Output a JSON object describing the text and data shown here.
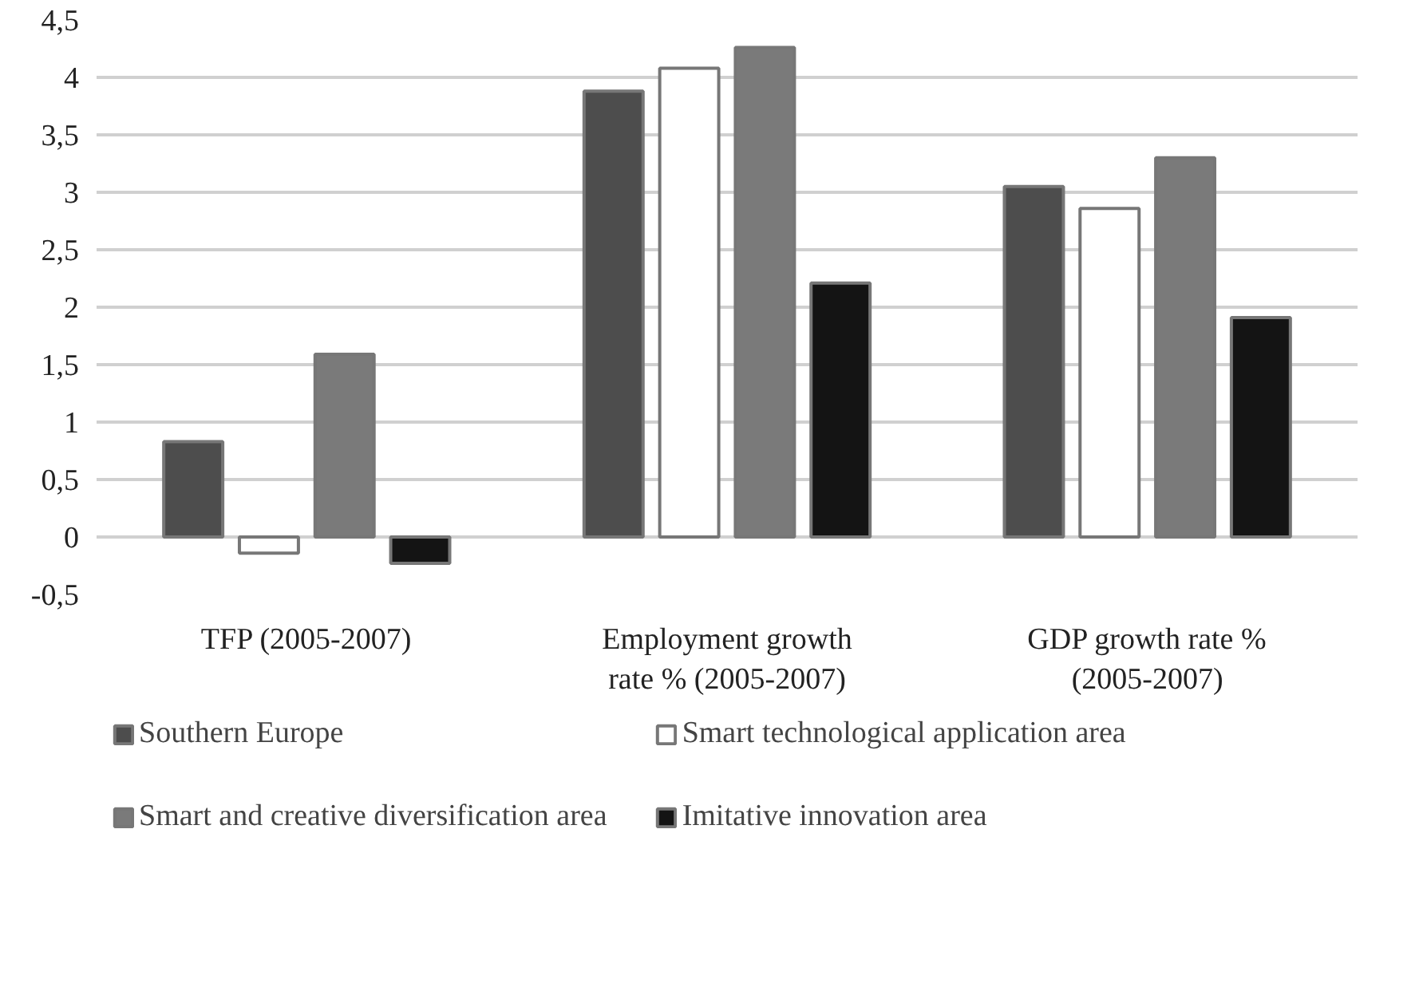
{
  "chart_data": {
    "type": "bar",
    "categories": [
      "TFP (2005-2007)",
      "Employment growth\nrate % (2005-2007)",
      "GDP growth rate %\n(2005-2007)"
    ],
    "series": [
      {
        "name": "Southern Europe",
        "color": "#4d4d4d",
        "values": [
          0.83,
          3.88,
          3.05
        ]
      },
      {
        "name": "Smart technological application area",
        "color": "#ffffff",
        "values": [
          -0.14,
          4.08,
          2.86
        ]
      },
      {
        "name": "Smart and creative diversification area",
        "color": "#7a7a7a",
        "values": [
          1.59,
          4.26,
          3.3
        ]
      },
      {
        "name": "Imitative innovation area",
        "color": "#141414",
        "values": [
          -0.23,
          2.21,
          1.91
        ]
      }
    ],
    "ylim": [
      -0.5,
      4.5
    ],
    "yticks": [
      {
        "value": -0.5,
        "label": "-0,5"
      },
      0,
      {
        "value": 0.5,
        "label": "0,5"
      },
      1,
      {
        "value": 1.5,
        "label": "1,5"
      },
      2,
      {
        "value": 2.5,
        "label": "2,5"
      },
      3,
      {
        "value": 3.5,
        "label": "3,5"
      },
      4,
      {
        "value": 4.5,
        "label": "4,5"
      }
    ],
    "grid": "y",
    "legend": "bottom"
  }
}
